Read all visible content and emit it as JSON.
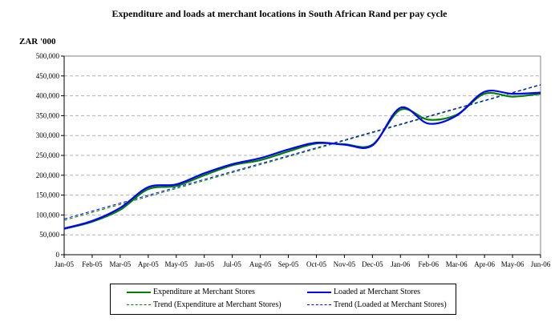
{
  "chart_data": {
    "type": "line",
    "title": "Expenditure and loads at merchant locations in South African Rand per pay cycle",
    "ylabel": "ZAR '000",
    "xlabel": "",
    "ylim": [
      0,
      500000
    ],
    "yticks": [
      "0",
      "50,000",
      "100,000",
      "150,000",
      "200,000",
      "250,000",
      "300,000",
      "350,000",
      "400,000",
      "450,000",
      "500,000"
    ],
    "categories": [
      "Jan-05",
      "Feb-05",
      "Mar-05",
      "Apr-05",
      "May-05",
      "Jun-05",
      "Jul-05",
      "Aug-05",
      "Sep-05",
      "Oct-05",
      "Nov-05",
      "Dec-05",
      "Jan-06",
      "Feb-06",
      "Mar-06",
      "Apr-06",
      "May-06",
      "Jun-06"
    ],
    "grid": true,
    "legend_position": "bottom",
    "series": [
      {
        "name": "Expenditure at Merchant Stores",
        "color": "#008000",
        "style": "solid",
        "values": [
          65000,
          83000,
          113000,
          165000,
          173000,
          200000,
          225000,
          238000,
          260000,
          280000,
          278000,
          277000,
          365000,
          340000,
          352000,
          405000,
          398000,
          405000
        ]
      },
      {
        "name": "Loaded at Merchant Stores",
        "color": "#0000FF",
        "style": "solid",
        "values": [
          66000,
          85000,
          118000,
          170000,
          177000,
          205000,
          228000,
          243000,
          265000,
          282000,
          277000,
          275000,
          370000,
          330000,
          350000,
          410000,
          405000,
          408000
        ]
      },
      {
        "name": "Trend (Expenditure at Merchant Stores)",
        "color": "#008000",
        "style": "dashed",
        "trend_of": 0
      },
      {
        "name": "Trend (Loaded at Merchant Stores)",
        "color": "#0000FF",
        "style": "dashed",
        "trend_of": 1
      }
    ]
  }
}
